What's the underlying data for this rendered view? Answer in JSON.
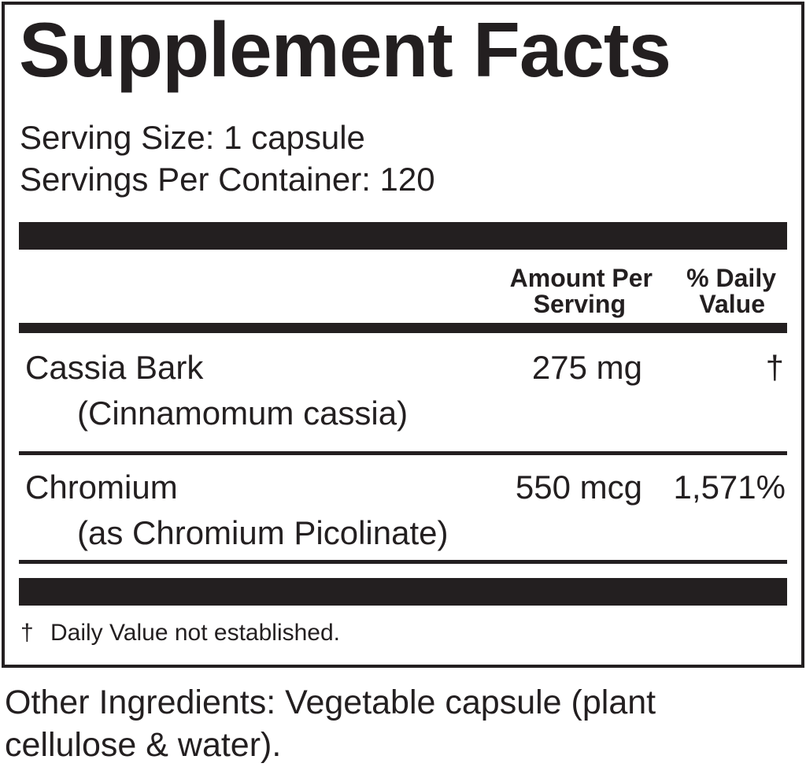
{
  "title": "Supplement Facts",
  "serving_size": "Serving Size: 1 capsule",
  "servings_per_container": "Servings Per Container: 120",
  "header": {
    "amount_line1": "Amount Per",
    "amount_line2": "Serving",
    "dv_line1": "% Daily",
    "dv_line2": "Value"
  },
  "rows": [
    {
      "name": "Cassia Bark",
      "sub": "(Cinnamomum cassia)",
      "amount": "275 mg",
      "dv": "†"
    },
    {
      "name": "Chromium",
      "sub": "(as Chromium Picolinate)",
      "amount": "550 mcg",
      "dv": "1,571%"
    }
  ],
  "footnote": {
    "symbol": "†",
    "text": "Daily Value not established."
  },
  "other_ingredients": {
    "line1": "Other Ingredients: Vegetable capsule (plant",
    "line2": "cellulose & water)."
  }
}
